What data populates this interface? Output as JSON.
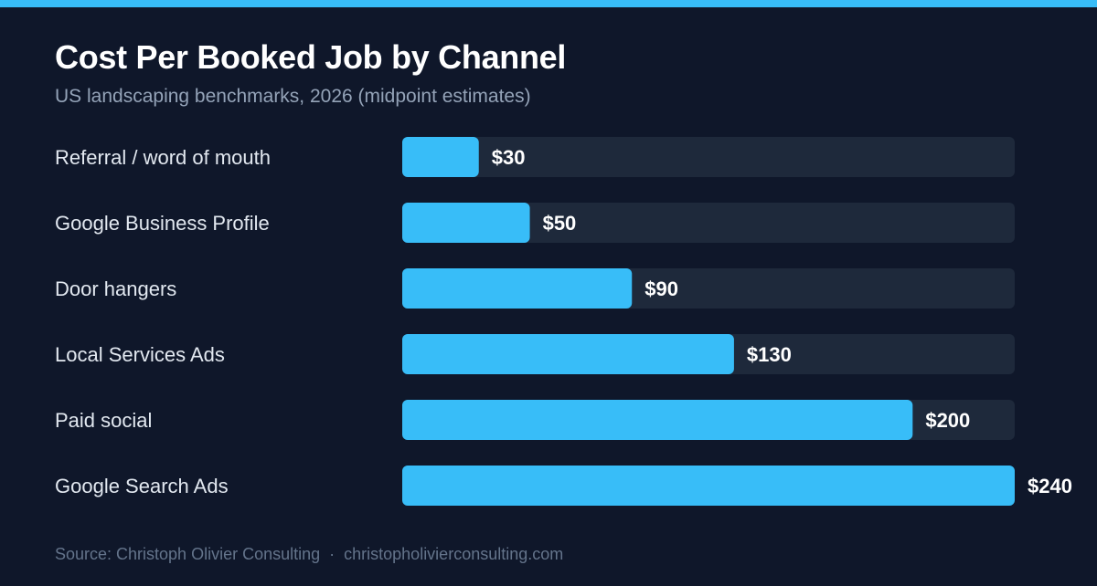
{
  "header": {
    "title": "Cost Per Booked Job by Channel",
    "subtitle": "US landscaping benchmarks, 2026 (midpoint estimates)"
  },
  "footer": {
    "source": "Source: Christoph Olivier Consulting",
    "separator": "·",
    "website": "christopholivierconsulting.com"
  },
  "colors": {
    "background": "#0f172a",
    "accent": "#38bdf8",
    "track": "#1e293b"
  },
  "chart_data": {
    "type": "bar",
    "orientation": "horizontal",
    "title": "Cost Per Booked Job by Channel",
    "subtitle": "US landscaping benchmarks, 2026 (midpoint estimates)",
    "categories": [
      "Referral / word of mouth",
      "Google Business Profile",
      "Door hangers",
      "Local Services Ads",
      "Paid social",
      "Google Search Ads"
    ],
    "values": [
      30,
      50,
      90,
      130,
      200,
      240
    ],
    "value_labels": [
      "$30",
      "$50",
      "$90",
      "$130",
      "$200",
      "$240"
    ],
    "xlim": [
      0,
      240
    ],
    "grid": false,
    "legend": "none"
  }
}
